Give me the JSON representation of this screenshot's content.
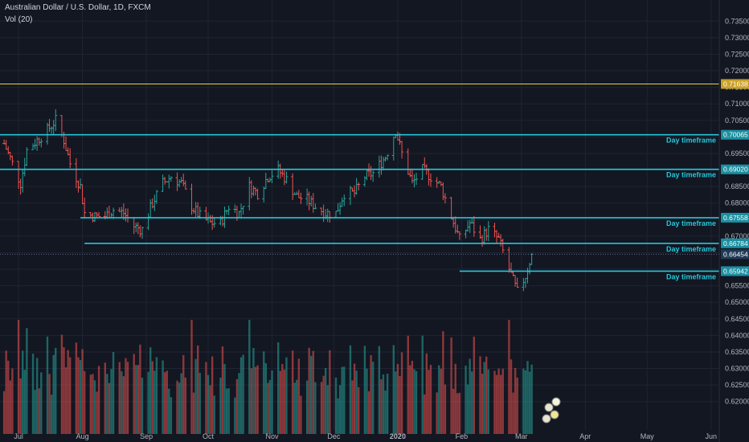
{
  "header": {
    "symbol_line": "Australian Dollar / U.S. Dollar, 1D, FXCM",
    "indicator_line": "Vol (20)"
  },
  "colors": {
    "background": "#131722",
    "grid": "#1f2433",
    "up": "#26a69a",
    "down": "#ef5350",
    "level_line": "#26c6da",
    "yellow_line": "#f0d040",
    "last_price_tag": "#1f3a55"
  },
  "chart_data": {
    "type": "ohlc",
    "title": "Australian Dollar / U.S. Dollar, 1D, FXCM",
    "y_ticks": [
      "0.73500",
      "0.73000",
      "0.72500",
      "0.72000",
      "0.71500",
      "0.71000",
      "0.70500",
      "0.70000",
      "0.69500",
      "0.69000",
      "0.68500",
      "0.68000",
      "0.67500",
      "0.67000",
      "0.66500",
      "0.66000",
      "0.65500",
      "0.65000",
      "0.64500",
      "0.64000",
      "0.63500",
      "0.63000",
      "0.62500",
      "0.62000"
    ],
    "y_range": [
      0.6175,
      0.7375
    ],
    "x_ticks": [
      "Jul",
      "Aug",
      "Sep",
      "Oct",
      "Nov",
      "Dec",
      "2020",
      "Feb",
      "Mar",
      "Apr",
      "May",
      "Jun"
    ],
    "x_range": [
      "2019-06-22",
      "2020-06-05"
    ],
    "grid": true,
    "horizontal_levels": [
      {
        "price": 0.716,
        "label": "",
        "tag": "0.71638",
        "style": "yellow",
        "from": "2019-06-22"
      },
      {
        "price": 0.70065,
        "label": "Day timeframe",
        "tag": "0.70065",
        "style": "cyan",
        "from": "2019-06-22"
      },
      {
        "price": 0.6902,
        "label": "Day timeframe",
        "tag": "0.69020",
        "style": "cyan",
        "from": "2019-06-22"
      },
      {
        "price": 0.67558,
        "label": "Day timeframe",
        "tag": "0.67558",
        "style": "cyan",
        "from": "2019-07-31"
      },
      {
        "price": 0.66784,
        "label": "Day timeframe",
        "tag": "0.66784",
        "style": "cyan",
        "from": "2019-08-02"
      },
      {
        "price": 0.65942,
        "label": "Day timeframe",
        "tag": "0.65942",
        "style": "cyan",
        "from": "2020-01-31"
      }
    ],
    "last_price": {
      "price": 0.66454,
      "tag": "0.66454"
    },
    "price_path": [
      {
        "date": "2019-06-24",
        "close": 0.698
      },
      {
        "date": "2019-06-28",
        "close": 0.692
      },
      {
        "date": "2019-07-02",
        "close": 0.686
      },
      {
        "date": "2019-07-05",
        "close": 0.696
      },
      {
        "date": "2019-07-10",
        "close": 0.699
      },
      {
        "date": "2019-07-15",
        "close": 0.702
      },
      {
        "date": "2019-07-19",
        "close": 0.705
      },
      {
        "date": "2019-07-23",
        "close": 0.699
      },
      {
        "date": "2019-07-26",
        "close": 0.692
      },
      {
        "date": "2019-07-31",
        "close": 0.685
      },
      {
        "date": "2019-08-02",
        "close": 0.677
      },
      {
        "date": "2019-08-07",
        "close": 0.676
      },
      {
        "date": "2019-08-12",
        "close": 0.676
      },
      {
        "date": "2019-08-16",
        "close": 0.678
      },
      {
        "date": "2019-08-21",
        "close": 0.677
      },
      {
        "date": "2019-08-26",
        "close": 0.673
      },
      {
        "date": "2019-08-30",
        "close": 0.672
      },
      {
        "date": "2019-09-04",
        "close": 0.68
      },
      {
        "date": "2019-09-09",
        "close": 0.686
      },
      {
        "date": "2019-09-13",
        "close": 0.688
      },
      {
        "date": "2019-09-18",
        "close": 0.686
      },
      {
        "date": "2019-09-23",
        "close": 0.679
      },
      {
        "date": "2019-09-27",
        "close": 0.676
      },
      {
        "date": "2019-10-02",
        "close": 0.674
      },
      {
        "date": "2019-10-07",
        "close": 0.674
      },
      {
        "date": "2019-10-11",
        "close": 0.679
      },
      {
        "date": "2019-10-16",
        "close": 0.677
      },
      {
        "date": "2019-10-21",
        "close": 0.685
      },
      {
        "date": "2019-10-25",
        "close": 0.683
      },
      {
        "date": "2019-10-30",
        "close": 0.688
      },
      {
        "date": "2019-11-04",
        "close": 0.69
      },
      {
        "date": "2019-11-08",
        "close": 0.687
      },
      {
        "date": "2019-11-13",
        "close": 0.682
      },
      {
        "date": "2019-11-18",
        "close": 0.681
      },
      {
        "date": "2019-11-22",
        "close": 0.679
      },
      {
        "date": "2019-11-27",
        "close": 0.677
      },
      {
        "date": "2019-12-02",
        "close": 0.677
      },
      {
        "date": "2019-12-06",
        "close": 0.683
      },
      {
        "date": "2019-12-11",
        "close": 0.683
      },
      {
        "date": "2019-12-16",
        "close": 0.688
      },
      {
        "date": "2019-12-20",
        "close": 0.689
      },
      {
        "date": "2019-12-26",
        "close": 0.694
      },
      {
        "date": "2019-12-31",
        "close": 0.702
      },
      {
        "date": "2020-01-03",
        "close": 0.695
      },
      {
        "date": "2020-01-08",
        "close": 0.686
      },
      {
        "date": "2020-01-13",
        "close": 0.69
      },
      {
        "date": "2020-01-17",
        "close": 0.688
      },
      {
        "date": "2020-01-22",
        "close": 0.685
      },
      {
        "date": "2020-01-27",
        "close": 0.676
      },
      {
        "date": "2020-01-31",
        "close": 0.669
      },
      {
        "date": "2020-02-05",
        "close": 0.674
      },
      {
        "date": "2020-02-10",
        "close": 0.669
      },
      {
        "date": "2020-02-14",
        "close": 0.672
      },
      {
        "date": "2020-02-19",
        "close": 0.669
      },
      {
        "date": "2020-02-24",
        "close": 0.66
      },
      {
        "date": "2020-02-28",
        "close": 0.653
      },
      {
        "date": "2020-03-03",
        "close": 0.658
      },
      {
        "date": "2020-03-06",
        "close": 0.6645
      }
    ],
    "volume_axis_max": 28
  }
}
